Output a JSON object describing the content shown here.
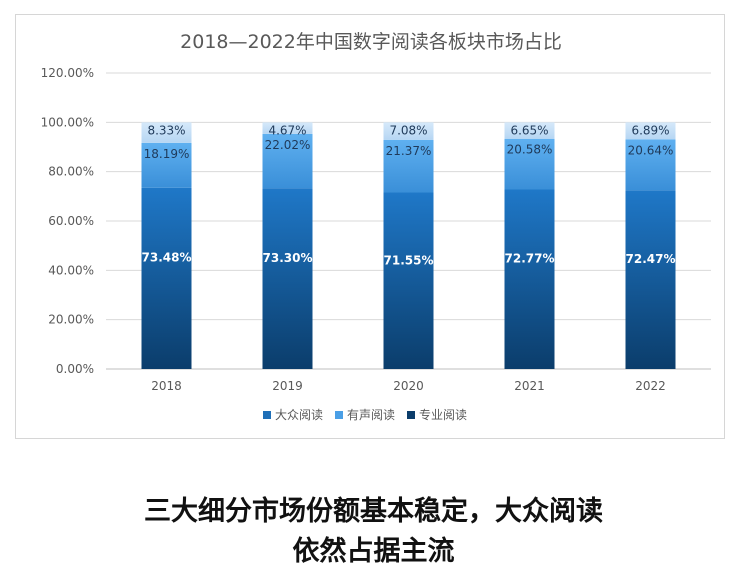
{
  "chart_data": {
    "type": "bar",
    "stacked": true,
    "title": "2018—2022年中国数字阅读各板块市场占比",
    "categories": [
      "2018",
      "2019",
      "2020",
      "2021",
      "2022"
    ],
    "series": [
      {
        "name": "大众阅读",
        "values": [
          73.48,
          73.3,
          71.55,
          72.77,
          72.47
        ],
        "labels": [
          "73.48%",
          "73.30%",
          "71.55%",
          "72.77%",
          "72.47%"
        ]
      },
      {
        "name": "有声阅读",
        "values": [
          18.19,
          22.02,
          21.37,
          20.58,
          20.64
        ],
        "labels": [
          "18.19%",
          "22.02%",
          "21.37%",
          "20.58%",
          "20.64%"
        ]
      },
      {
        "name": "专业阅读",
        "values": [
          8.33,
          4.67,
          7.08,
          6.65,
          6.89
        ],
        "labels": [
          "8.33%",
          "4.67%",
          "7.08%",
          "6.65%",
          "6.89%"
        ]
      }
    ],
    "ylim": [
      0,
      120
    ],
    "yticks": [
      "0.00%",
      "20.00%",
      "40.00%",
      "60.00%",
      "80.00%",
      "100.00%",
      "120.00%"
    ],
    "grid": true,
    "legend_position": "bottom",
    "colors": {
      "大众阅读": "#1f6fb7",
      "有声阅读": "#4a9fe6",
      "专业阅读": "#c5def5"
    }
  },
  "caption": {
    "line1": "三大细分市场份额基本稳定，大众阅读",
    "line2": "依然占据主流"
  }
}
